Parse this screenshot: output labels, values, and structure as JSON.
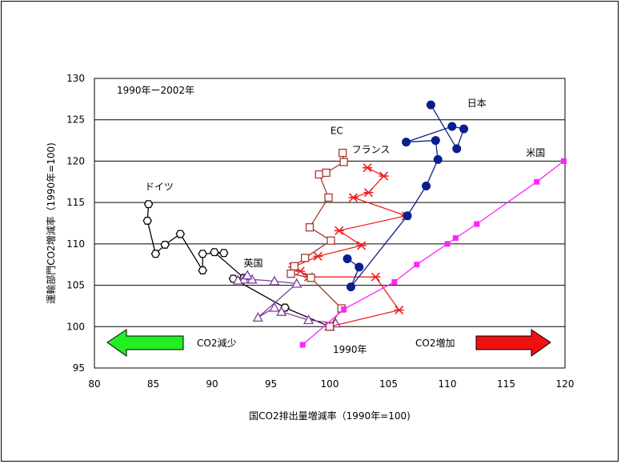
{
  "chart_data": {
    "type": "line",
    "title": "",
    "period_note": "1990年ー2002年",
    "xlabel": "国CO2排出量増減率（1990年=100)",
    "ylabel": "運輸部門CO2増減率（1990年=100)",
    "xlim": [
      80,
      120
    ],
    "ylim": [
      95,
      130
    ],
    "x_ticks": [
      "80",
      "85",
      "90",
      "95",
      "100",
      "105",
      "110",
      "115",
      "120"
    ],
    "y_ticks": [
      "95",
      "100",
      "105",
      "110",
      "115",
      "120",
      "125",
      "130"
    ],
    "grid": "horizontal",
    "series": [
      {
        "name": "ドイツ",
        "color": "#000000",
        "marker": "hexagon-open",
        "label_at": [
          85.5,
          116.5
        ],
        "points": [
          [
            100,
            100
          ],
          [
            96.2,
            102.3
          ],
          [
            91.8,
            105.8
          ],
          [
            92.7,
            105.9
          ],
          [
            90.2,
            109
          ],
          [
            91,
            108.9
          ],
          [
            89.2,
            108.8
          ],
          [
            89.2,
            106.8
          ],
          [
            87.3,
            111.2
          ],
          [
            86,
            109.9
          ],
          [
            85.2,
            108.8
          ],
          [
            84.5,
            112.8
          ],
          [
            84.6,
            114.8
          ]
        ]
      },
      {
        "name": "英国",
        "color": "#7f3f9f",
        "marker": "triangle-open",
        "label_at": [
          93.5,
          107.3
        ],
        "points": [
          [
            100,
            100
          ],
          [
            100.5,
            100.4
          ],
          [
            98.2,
            100.8
          ],
          [
            95.9,
            101.8
          ],
          [
            95.3,
            102.3
          ],
          [
            93.9,
            101.1
          ],
          [
            97.2,
            105.2
          ],
          [
            95.3,
            105.5
          ],
          [
            93.4,
            105.7
          ],
          [
            92.7,
            105.7
          ],
          [
            92.2,
            105.6
          ],
          [
            93,
            106.2
          ]
        ]
      },
      {
        "name": "フランス",
        "color": "#ef2020",
        "marker": "asterisk",
        "label_at": [
          103.5,
          121
        ],
        "points": [
          [
            100,
            100
          ],
          [
            105.9,
            102
          ],
          [
            103.9,
            106
          ],
          [
            98.2,
            106
          ],
          [
            97.5,
            106.7
          ],
          [
            96.9,
            107.2
          ],
          [
            99,
            108.5
          ],
          [
            102.7,
            109.8
          ],
          [
            100.8,
            111.6
          ],
          [
            106.5,
            113.4
          ],
          [
            102,
            115.6
          ],
          [
            103.3,
            116.2
          ],
          [
            104.6,
            118.2
          ],
          [
            103.2,
            119.2
          ]
        ]
      },
      {
        "name": "EC",
        "color": "#a53b2e",
        "marker": "square-open",
        "label_at": [
          100.6,
          123.3
        ],
        "points": [
          [
            100,
            100
          ],
          [
            101,
            102.2
          ],
          [
            98.4,
            105.9
          ],
          [
            96.7,
            106.4
          ],
          [
            97,
            107.3
          ],
          [
            97.9,
            108.3
          ],
          [
            100.1,
            110.4
          ],
          [
            98.3,
            112
          ],
          [
            99.9,
            115.6
          ],
          [
            99.1,
            118.4
          ],
          [
            99.7,
            118.6
          ],
          [
            101.2,
            119.9
          ],
          [
            101.1,
            121
          ]
        ]
      },
      {
        "name": "日本",
        "color": "#0a1e8c",
        "marker": "circle-filled",
        "label_at": [
          112.5,
          126.6
        ],
        "points": [
          [
            101.5,
            108.2
          ],
          [
            102.5,
            107.2
          ],
          [
            101.8,
            104.8
          ],
          [
            106.6,
            113.4
          ],
          [
            108.2,
            117
          ],
          [
            109.2,
            120.2
          ],
          [
            109,
            122.5
          ],
          [
            106.5,
            122.3
          ],
          [
            110.4,
            124.2
          ],
          [
            111.4,
            123.9
          ],
          [
            110.8,
            121.5
          ],
          [
            108.6,
            126.8
          ]
        ]
      },
      {
        "name": "米国",
        "color": "#ff22ff",
        "marker": "square-filled",
        "label_at": [
          117.5,
          120.6
        ],
        "points": [
          [
            97.7,
            97.8
          ],
          [
            101.2,
            102.1
          ],
          [
            105.5,
            105.4
          ],
          [
            107.4,
            107.5
          ],
          [
            110,
            110
          ],
          [
            110.7,
            110.7
          ],
          [
            112.5,
            112.4
          ],
          [
            117.6,
            117.5
          ],
          [
            119.9,
            120
          ]
        ]
      }
    ],
    "annotations": {
      "decrease": "CO2減少",
      "increase": "CO2増加",
      "origin": "1990年"
    },
    "arrow_colors": {
      "decrease": "#22ee22",
      "increase": "#ee1111"
    }
  }
}
